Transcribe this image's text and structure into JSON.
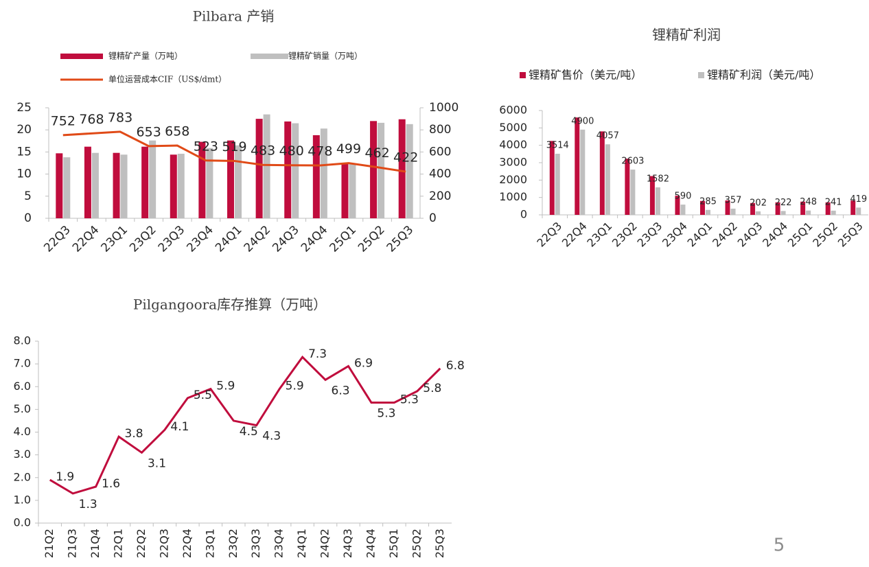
{
  "chart_data": [
    {
      "type": "bar",
      "title": "Pilbara 产销",
      "categories": [
        "22Q3",
        "22Q4",
        "23Q1",
        "23Q2",
        "23Q3",
        "23Q4",
        "24Q1",
        "24Q2",
        "24Q3",
        "24Q4",
        "25Q1",
        "25Q2",
        "25Q3"
      ],
      "series": [
        {
          "name": "锂精矿产量（万吨）",
          "color": "#c00d3d",
          "values": [
            14.7,
            16.2,
            14.8,
            16.2,
            14.4,
            17.3,
            17.6,
            22.5,
            21.9,
            18.8,
            12.5,
            22.0,
            22.4
          ]
        },
        {
          "name": "锂精矿销量（万吨）",
          "color": "#bfbfbf",
          "values": [
            13.8,
            14.8,
            14.4,
            17.6,
            14.6,
            15.9,
            16.5,
            23.5,
            21.5,
            20.3,
            12.3,
            21.6,
            21.3
          ]
        },
        {
          "name": "单位运营成本CIF（US$/dmt）",
          "color": "#e04a17",
          "type": "line",
          "axis": "y2",
          "data_labels": true,
          "values": [
            752,
            768,
            783,
            653,
            658,
            523,
            519,
            483,
            480,
            478,
            499,
            462,
            422
          ]
        }
      ],
      "ylim": [
        0,
        25
      ],
      "yticks": [
        0,
        5,
        10,
        15,
        20,
        25
      ],
      "y2lim": [
        0,
        1000
      ],
      "y2ticks": [
        0,
        200,
        400,
        600,
        800,
        1000
      ]
    },
    {
      "type": "bar",
      "title": "锂精矿利润",
      "categories": [
        "22Q3",
        "22Q4",
        "23Q1",
        "23Q2",
        "23Q3",
        "23Q4",
        "24Q1",
        "24Q2",
        "24Q3",
        "24Q4",
        "25Q1",
        "25Q2",
        "25Q3"
      ],
      "series": [
        {
          "name": "锂精矿售价（美元/吨）",
          "color": "#c00d3d",
          "values": [
            4250,
            5600,
            4800,
            3230,
            2230,
            1100,
            800,
            830,
            680,
            720,
            760,
            720,
            820
          ]
        },
        {
          "name": "锂精矿利润（美元/吨）",
          "color": "#bfbfbf",
          "data_labels": true,
          "values": [
            3514,
            4900,
            4057,
            2603,
            1582,
            590,
            285,
            357,
            202,
            222,
            248,
            241,
            419
          ]
        }
      ],
      "ylim": [
        0,
        6000
      ],
      "yticks": [
        0,
        1000,
        2000,
        3000,
        4000,
        5000,
        6000
      ]
    },
    {
      "type": "line",
      "title": "Pilgangoora库存推算（万吨）",
      "categories": [
        "21Q2",
        "21Q3",
        "21Q4",
        "22Q1",
        "22Q2",
        "22Q3",
        "22Q4",
        "23Q1",
        "23Q2",
        "23Q3",
        "23Q4",
        "24Q1",
        "24Q2",
        "24Q3",
        "24Q4",
        "25Q1",
        "25Q2",
        "25Q3"
      ],
      "values": [
        1.9,
        1.3,
        1.6,
        3.8,
        3.1,
        4.1,
        5.5,
        5.9,
        4.5,
        4.3,
        5.9,
        7.3,
        6.3,
        6.9,
        5.3,
        5.3,
        5.8,
        6.8
      ],
      "color": "#c00d3d",
      "data_labels": true,
      "ylim": [
        0,
        8
      ],
      "yticks": [
        {
          "value": 0,
          "label": "0.0"
        },
        {
          "value": 1,
          "label": "1.0"
        },
        {
          "value": 2,
          "label": "2.0"
        },
        {
          "value": 3,
          "label": "3.0"
        },
        {
          "value": 4,
          "label": "4.0"
        },
        {
          "value": 5,
          "label": "5.0"
        },
        {
          "value": 6,
          "label": "6.0"
        },
        {
          "value": 7,
          "label": "7.0"
        },
        {
          "value": 8,
          "label": "8.0"
        }
      ]
    }
  ],
  "page_number": "5"
}
